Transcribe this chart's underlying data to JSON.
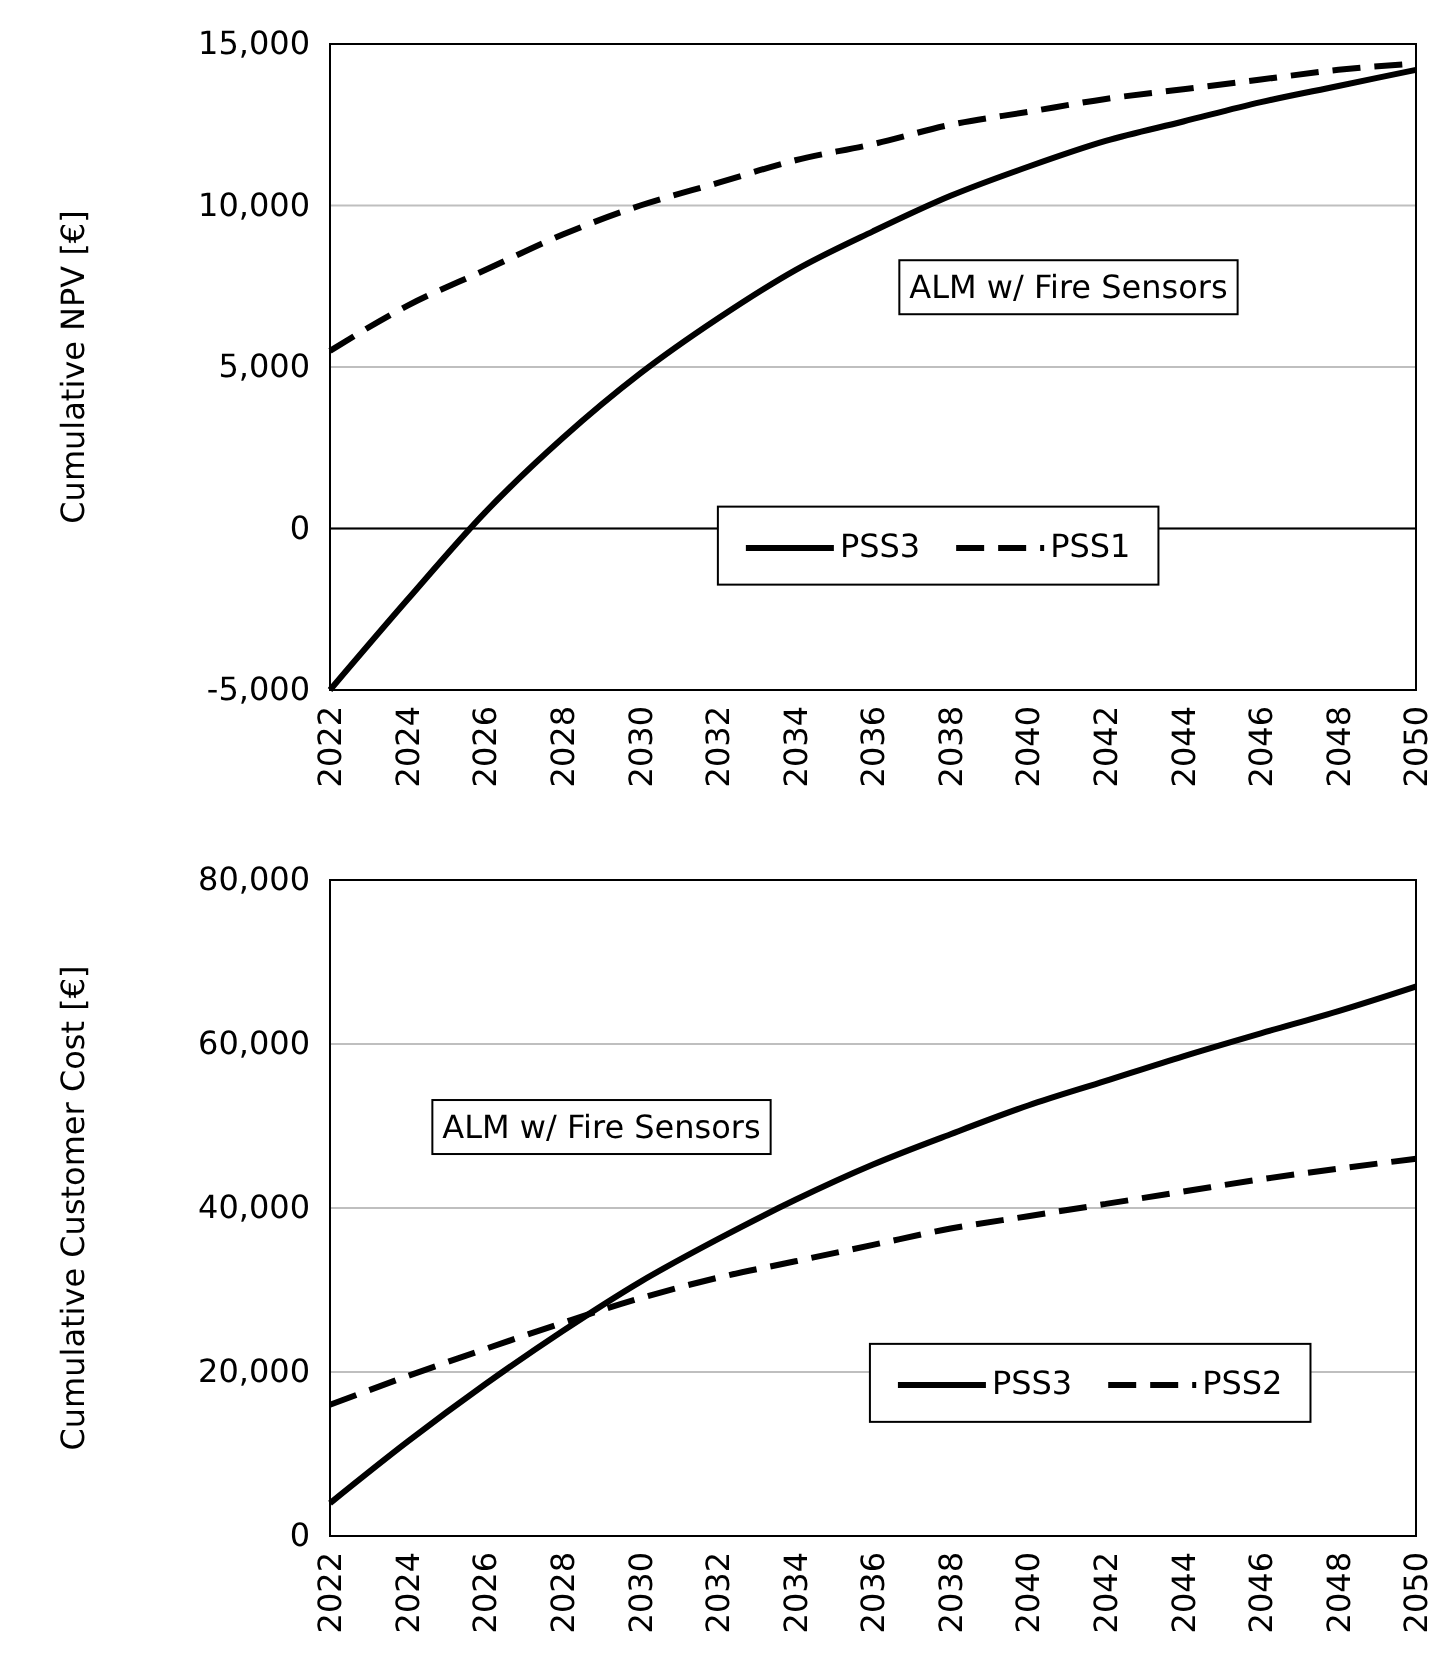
{
  "chart_data": [
    {
      "type": "line",
      "ylabel": "Cumulative NPV [€]",
      "x": [
        2022,
        2024,
        2026,
        2028,
        2030,
        2032,
        2034,
        2036,
        2038,
        2040,
        2042,
        2044,
        2046,
        2048,
        2050
      ],
      "series": [
        {
          "name": "PSS3",
          "color": "#000000",
          "line_style": "solid",
          "values": [
            -5000,
            -2200,
            500,
            2800,
            4800,
            6500,
            8000,
            9200,
            10300,
            11200,
            12000,
            12600,
            13200,
            13700,
            14200
          ]
        },
        {
          "name": "PSS1",
          "color": "#000000",
          "line_style": "dashed",
          "values": [
            5500,
            6900,
            8000,
            9100,
            10000,
            10700,
            11400,
            11900,
            12500,
            12900,
            13300,
            13600,
            13900,
            14200,
            14400
          ]
        }
      ],
      "xlim": [
        2022,
        2050
      ],
      "xticks": [
        2022,
        2024,
        2026,
        2028,
        2030,
        2032,
        2034,
        2036,
        2038,
        2040,
        2042,
        2044,
        2046,
        2048,
        2050
      ],
      "ylim": [
        -5000,
        15000
      ],
      "yticks": [
        {
          "value": -5000,
          "label": "-5,000"
        },
        0,
        {
          "value": 5000,
          "label": "5,000"
        },
        {
          "value": 10000,
          "label": "10,000"
        },
        {
          "value": 15000,
          "label": "15,000"
        }
      ],
      "grid": "y",
      "legend": "right",
      "marker": "none",
      "annotations": [
        "ALM w/ Fire Sensors"
      ]
    },
    {
      "type": "line",
      "ylabel": "Cumulative Customer Cost [€]",
      "x": [
        2022,
        2024,
        2026,
        2028,
        2030,
        2032,
        2034,
        2036,
        2038,
        2040,
        2042,
        2044,
        2046,
        2048,
        2050
      ],
      "series": [
        {
          "name": "PSS3",
          "color": "#000000",
          "line_style": "solid",
          "values": [
            4000,
            11500,
            18500,
            25000,
            31000,
            36200,
            41000,
            45300,
            49000,
            52500,
            55500,
            58500,
            61300,
            64000,
            67000
          ]
        },
        {
          "name": "PSS2",
          "color": "#000000",
          "line_style": "dashed",
          "values": [
            16000,
            19500,
            22800,
            26000,
            29000,
            31500,
            33500,
            35500,
            37500,
            39000,
            40500,
            42000,
            43500,
            44800,
            46000
          ]
        }
      ],
      "xlim": [
        2022,
        2050
      ],
      "xticks": [
        2022,
        2024,
        2026,
        2028,
        2030,
        2032,
        2034,
        2036,
        2038,
        2040,
        2042,
        2044,
        2046,
        2048,
        2050
      ],
      "ylim": [
        0,
        80000
      ],
      "yticks": [
        0,
        {
          "value": 20000,
          "label": "20,000"
        },
        {
          "value": 40000,
          "label": "40,000"
        },
        {
          "value": 60000,
          "label": "60,000"
        },
        {
          "value": 80000,
          "label": "80,000"
        }
      ],
      "grid": "y",
      "legend": "bottom right",
      "marker": "none",
      "annotations": [
        "ALM w/ Fire Sensors"
      ]
    }
  ]
}
